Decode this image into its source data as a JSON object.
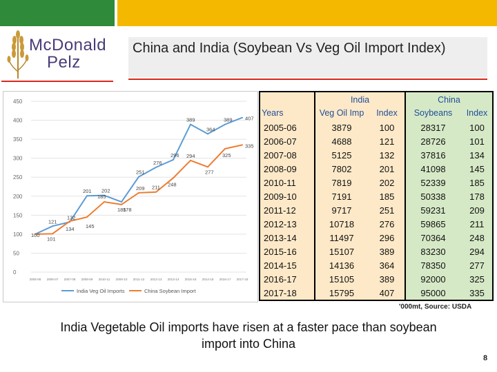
{
  "header": {
    "colors": {
      "green": "#2f8a3a",
      "yellow": "#f5b800",
      "red": "#d9261c"
    }
  },
  "logo": {
    "line1": "McDonald",
    "line2": "Pelz",
    "icon": "wheat-icon"
  },
  "title": "China and India (Soybean Vs Veg Oil Import Index)",
  "table": {
    "group_headers": {
      "india": "India",
      "china": "China"
    },
    "col_headers": [
      "Years",
      "Veg Oil Imp",
      "Index",
      "Soybeans",
      "Index"
    ],
    "rows": [
      [
        "2005-06",
        "3879",
        "100",
        "28317",
        "100"
      ],
      [
        "2006-07",
        "4688",
        "121",
        "28726",
        "101"
      ],
      [
        "2007-08",
        "5125",
        "132",
        "37816",
        "134"
      ],
      [
        "2008-09",
        "7802",
        "201",
        "41098",
        "145"
      ],
      [
        "2010-11",
        "7819",
        "202",
        "52339",
        "185"
      ],
      [
        "2009-10",
        "7191",
        "185",
        "50338",
        "178"
      ],
      [
        "2011-12",
        "9717",
        "251",
        "59231",
        "209"
      ],
      [
        "2012-13",
        "10718",
        "276",
        "59865",
        "211"
      ],
      [
        "2013-14",
        "11497",
        "296",
        "70364",
        "248"
      ],
      [
        "2015-16",
        "15107",
        "389",
        "83230",
        "294"
      ],
      [
        "2014-15",
        "14136",
        "364",
        "78350",
        "277"
      ],
      [
        "2016-17",
        "15105",
        "389",
        "92000",
        "325"
      ],
      [
        "2017-18",
        "15795",
        "407",
        "95000",
        "335"
      ]
    ],
    "colors": {
      "india_bg": "#fde9c8",
      "china_bg": "#d6e9c6",
      "header_text": "#1f4d9a"
    }
  },
  "chart_data": {
    "type": "line",
    "categories": [
      "2005-06",
      "2006-07",
      "2007-08",
      "2008-09",
      "2010-11",
      "2009-10",
      "2011-12",
      "2012-13",
      "2013-14",
      "2015-16",
      "2014-15",
      "2016-17",
      "2017-18"
    ],
    "series": [
      {
        "name": "India Veg Oil Imports",
        "values": [
          100,
          121,
          132,
          201,
          202,
          185,
          251,
          276,
          296,
          389,
          364,
          389,
          407
        ],
        "color": "#5b9bd5",
        "labels": [
          "",
          "121",
          "132",
          "201",
          "202",
          "185",
          "251",
          "276",
          "296",
          "389",
          "364",
          "389",
          "407"
        ]
      },
      {
        "name": "China Soybean Import",
        "values": [
          100,
          101,
          134,
          145,
          185,
          178,
          209,
          211,
          248,
          294,
          277,
          325,
          335
        ],
        "color": "#ed7d31",
        "labels": [
          "100",
          "101",
          "134",
          "145",
          "185",
          "178",
          "209",
          "211",
          "248",
          "294",
          "277",
          "325",
          "335"
        ]
      }
    ],
    "ylim": [
      0,
      450
    ],
    "yticks": [
      0,
      50,
      100,
      150,
      200,
      250,
      300,
      350,
      400,
      450
    ],
    "grid": true,
    "legend": "bottom"
  },
  "source": "'000mt, Source: USDA",
  "caption": "India Vegetable Oil imports have risen at a faster pace than soybean import into China",
  "page_number": "8"
}
